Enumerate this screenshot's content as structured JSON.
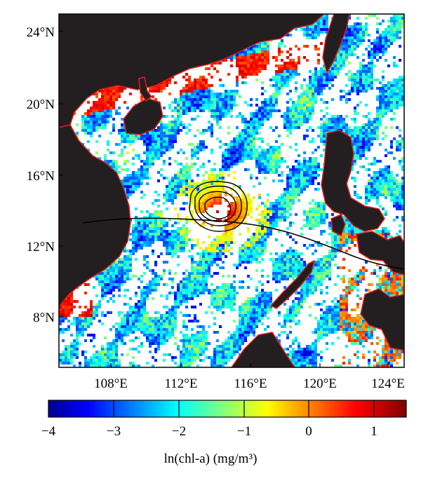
{
  "map": {
    "lat_labels": [
      "24°N",
      "20°N",
      "16°N",
      "12°N",
      "8°N"
    ],
    "lon_labels": [
      "108°E",
      "112°E",
      "116°E",
      "120°E",
      "124°E"
    ],
    "lat_ticks": [
      24,
      20,
      16,
      12,
      8
    ],
    "lon_ticks": [
      108,
      112,
      116,
      120,
      124
    ],
    "lat_range": [
      5,
      25
    ],
    "lon_range": [
      105,
      125
    ],
    "land_color": "#231f20",
    "coast_color": "#e31a1c",
    "track_color": "#000000",
    "contour_color": "#000000"
  },
  "colorbar": {
    "label": "ln(chl-a) (mg/m³)",
    "tick_labels": [
      "−4",
      "−3",
      "−2",
      "−1",
      "0",
      "1"
    ],
    "ticks": [
      -4,
      -3,
      -2,
      -1,
      0,
      1
    ],
    "range": [
      -4,
      1.5
    ],
    "colormap": "jet"
  }
}
